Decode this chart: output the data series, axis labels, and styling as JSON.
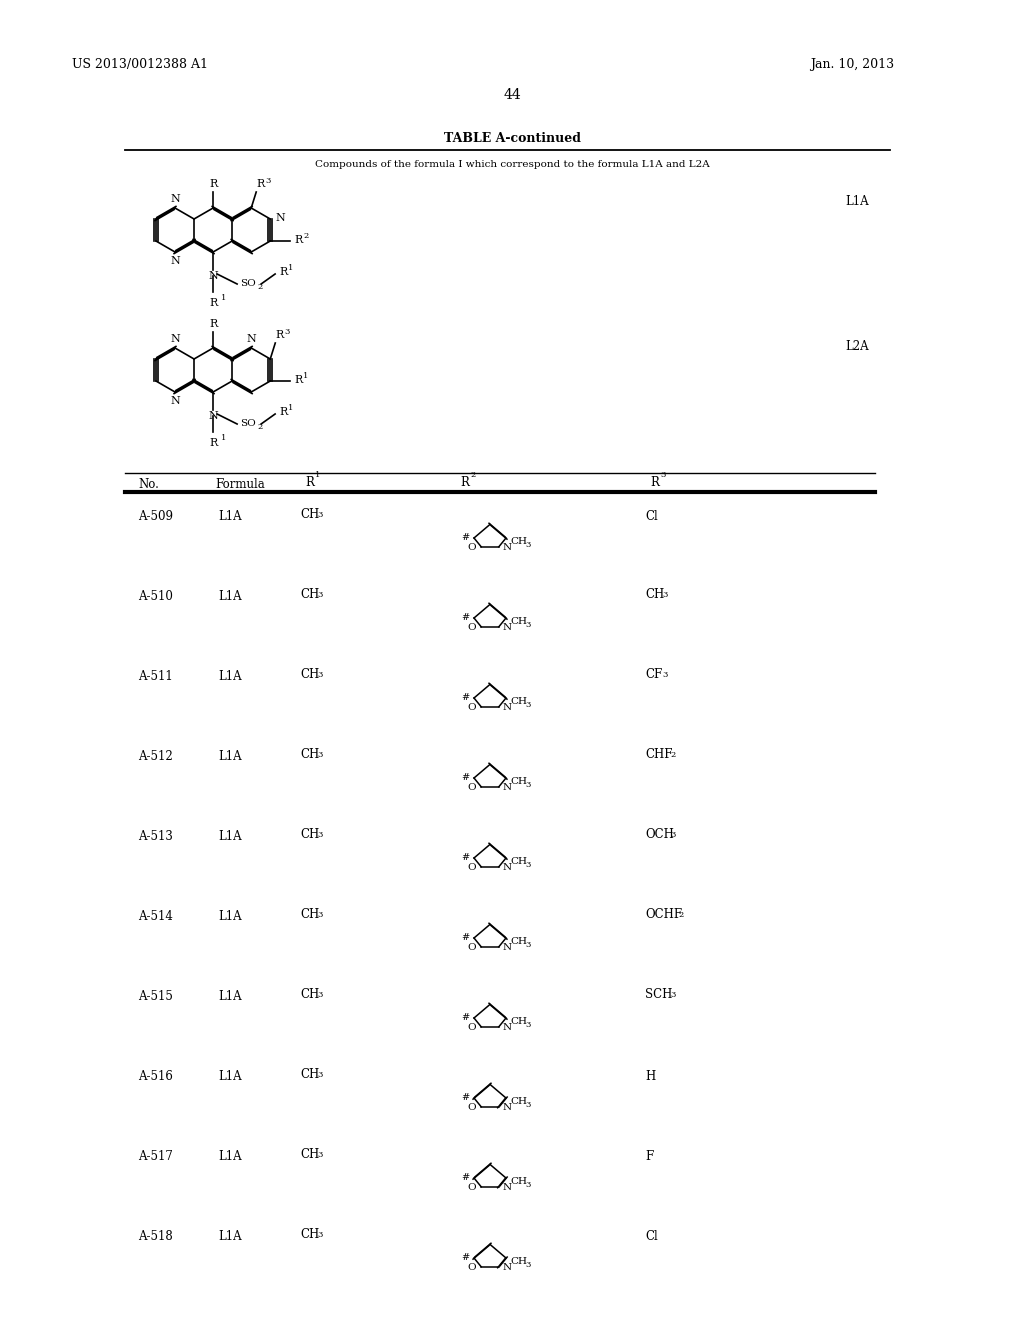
{
  "page_number": "44",
  "patent_number": "US 2013/0012388 A1",
  "patent_date": "Jan. 10, 2013",
  "table_title": "TABLE A-continued",
  "table_subtitle": "Compounds of the formula I which correspond to the formula L1A and L2A",
  "formula_label_1": "L1A",
  "formula_label_2": "L2A",
  "row_configs": [
    [
      "A-509",
      "L1A",
      "CH3",
      "sat",
      "Cl"
    ],
    [
      "A-510",
      "L1A",
      "CH3",
      "sat",
      "CH3"
    ],
    [
      "A-511",
      "L1A",
      "CH3",
      "sat",
      "CF3"
    ],
    [
      "A-512",
      "L1A",
      "CH3",
      "sat",
      "CHF2"
    ],
    [
      "A-513",
      "L1A",
      "CH3",
      "sat",
      "OCH3"
    ],
    [
      "A-514",
      "L1A",
      "CH3",
      "sat",
      "OCHF2"
    ],
    [
      "A-515",
      "L1A",
      "CH3",
      "sat",
      "SCH3"
    ],
    [
      "A-516",
      "L1A",
      "CH3",
      "unsat",
      "H"
    ],
    [
      "A-517",
      "L1A",
      "CH3",
      "unsat",
      "F"
    ],
    [
      "A-518",
      "L1A",
      "CH3",
      "unsat",
      "Cl"
    ]
  ],
  "background_color": "#ffffff"
}
